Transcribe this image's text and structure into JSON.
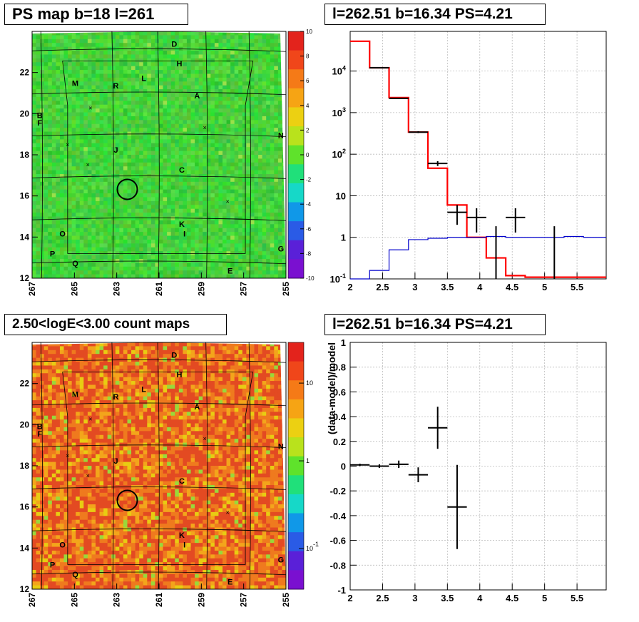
{
  "panels": {
    "tl": {
      "title": "PS map b=18 l=261"
    },
    "tr": {
      "title": "l=262.51 b=16.34 PS=4.21"
    },
    "bl": {
      "title": "2.50<logE<3.00 count maps"
    },
    "br": {
      "title": "l=262.51 b=16.34 PS=4.21"
    }
  },
  "chart_data": [
    {
      "type": "heatmap",
      "title": "PS map b=18 l=261",
      "x_ticks": [
        "267",
        "265",
        "263",
        "261",
        "259",
        "257",
        "255"
      ],
      "y_ticks": [
        "12",
        "14",
        "16",
        "18",
        "20",
        "22"
      ],
      "xlim": [
        267,
        255
      ],
      "ylim": [
        12,
        24
      ],
      "colorbar_ticks": [
        "10",
        "8",
        "6",
        "4",
        "2",
        "0",
        "-2",
        "-4",
        "-6",
        "-8",
        "-10"
      ],
      "zlim": [
        -10,
        10
      ],
      "dominant_value": 0,
      "source_labels": [
        "D",
        "H",
        "M",
        "R",
        "L",
        "A",
        "B",
        "F",
        "N",
        "J",
        "C",
        "K",
        "I",
        "O",
        "G",
        "P",
        "Q",
        "E"
      ],
      "marked_source": {
        "l": 262.51,
        "b": 16.34
      },
      "colors": {
        "low": "#5a20d8",
        "mid": "#22dd44",
        "high": "#e02020"
      }
    },
    {
      "type": "line",
      "title": "l=262.51 b=16.34 PS=4.21",
      "x_ticks": [
        "2",
        "2.5",
        "3",
        "3.5",
        "4",
        "4.5",
        "5",
        "5.5"
      ],
      "y_ticks": [
        "10-1",
        "1",
        "10",
        "102",
        "103",
        "104"
      ],
      "xlim": [
        2,
        5.95
      ],
      "ylim": [
        0.1,
        90000
      ],
      "yscale": "log",
      "grid": true,
      "series": [
        {
          "color": "#ff0000",
          "style": "step",
          "edges": [
            2.0,
            2.3,
            2.6,
            2.9,
            3.2,
            3.5,
            3.8,
            4.1,
            4.4,
            4.7,
            5.0,
            5.3,
            5.6,
            5.95
          ],
          "values": [
            52000,
            12000,
            2300,
            340,
            46,
            6,
            1.0,
            0.32,
            0.12,
            0.11,
            0.11,
            0.11,
            0.11
          ]
        },
        {
          "color": "#0000cc",
          "style": "step",
          "edges": [
            2.0,
            2.3,
            2.6,
            2.9,
            3.2,
            3.5,
            3.8,
            4.1,
            4.4,
            4.7,
            5.0,
            5.3,
            5.6,
            5.95
          ],
          "values": [
            0.03,
            0.16,
            0.5,
            0.88,
            0.95,
            1.0,
            1.0,
            1.05,
            1.0,
            1.0,
            1.0,
            1.05,
            1.0
          ]
        }
      ],
      "points": [
        {
          "x": 2.45,
          "y": 12000,
          "xerr": 0.15,
          "ylo": 11800,
          "yhi": 12200
        },
        {
          "x": 2.75,
          "y": 2200,
          "xerr": 0.15,
          "ylo": 2150,
          "yhi": 2250
        },
        {
          "x": 3.05,
          "y": 340,
          "xerr": 0.15,
          "ylo": 322,
          "yhi": 358
        },
        {
          "x": 3.35,
          "y": 60,
          "xerr": 0.15,
          "ylo": 52,
          "yhi": 68
        },
        {
          "x": 3.65,
          "y": 4,
          "xerr": 0.15,
          "ylo": 2,
          "yhi": 6
        },
        {
          "x": 3.95,
          "y": 3,
          "xerr": 0.15,
          "ylo": 1.3,
          "yhi": 5
        },
        {
          "x": 4.25,
          "y": 0.1,
          "xerr": 0,
          "ylo": 0.1,
          "yhi": 1.85
        },
        {
          "x": 4.55,
          "y": 3,
          "xerr": 0.15,
          "ylo": 1.3,
          "yhi": 5
        },
        {
          "x": 5.15,
          "y": 0.1,
          "xerr": 0,
          "ylo": 0.1,
          "yhi": 1.85
        }
      ]
    },
    {
      "type": "heatmap",
      "title": "2.50<logE<3.00 count maps",
      "x_ticks": [
        "267",
        "265",
        "263",
        "261",
        "259",
        "257",
        "255"
      ],
      "y_ticks": [
        "12",
        "14",
        "16",
        "18",
        "20",
        "22"
      ],
      "xlim": [
        267,
        255
      ],
      "ylim": [
        12,
        24
      ],
      "colorbar_ticks": [
        "10",
        "1",
        "10-1"
      ],
      "zscale": "log",
      "dominant_value": "~3 counts",
      "source_labels": [
        "D",
        "H",
        "M",
        "R",
        "L",
        "A",
        "B",
        "F",
        "N",
        "J",
        "C",
        "K",
        "I",
        "O",
        "G",
        "P",
        "Q",
        "E"
      ],
      "marked_source": {
        "l": 262.51,
        "b": 16.34
      },
      "colors": {
        "low": "#5a20d8",
        "mid": "#22dd44",
        "high": "#e02020"
      }
    },
    {
      "type": "scatter",
      "title": "l=262.51 b=16.34 PS=4.21",
      "ylabel": "(data-model)/model",
      "x_ticks": [
        "2",
        "2.5",
        "3",
        "3.5",
        "4",
        "4.5",
        "5",
        "5.5"
      ],
      "y_ticks": [
        "1",
        "0.8",
        "0.6",
        "0.4",
        "0.2",
        "0",
        "-0.2",
        "-0.4",
        "-0.6",
        "-0.8",
        "-1"
      ],
      "xlim": [
        2,
        5.95
      ],
      "ylim": [
        -1,
        1
      ],
      "grid": true,
      "points": [
        {
          "x": 2.15,
          "y": 0.01,
          "xerr": 0.15,
          "yerr": 0.01
        },
        {
          "x": 2.45,
          "y": 0.0,
          "xerr": 0.15,
          "yerr": 0.015
        },
        {
          "x": 2.75,
          "y": 0.015,
          "xerr": 0.15,
          "yerr": 0.03
        },
        {
          "x": 3.05,
          "y": -0.07,
          "xerr": 0.15,
          "yerr": 0.06
        },
        {
          "x": 3.35,
          "y": 0.31,
          "xerr": 0.15,
          "yerr": 0.17
        },
        {
          "x": 3.65,
          "y": -0.33,
          "xerr": 0.15,
          "yerr": 0.34
        }
      ]
    }
  ]
}
